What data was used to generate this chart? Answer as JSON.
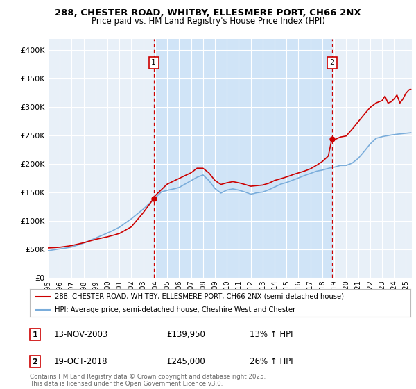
{
  "title_line1": "288, CHESTER ROAD, WHITBY, ELLESMERE PORT, CH66 2NX",
  "title_line2": "Price paid vs. HM Land Registry's House Price Index (HPI)",
  "fig_bg_color": "#ffffff",
  "plot_bg_color": "#e8f0f8",
  "plot_bg_highlight": "#d0e4f7",
  "ylim": [
    0,
    420000
  ],
  "yticks": [
    0,
    50000,
    100000,
    150000,
    200000,
    250000,
    300000,
    350000,
    400000
  ],
  "annotation1": {
    "label": "1",
    "date_x": 2003.87,
    "price": 139950,
    "date_str": "13-NOV-2003",
    "pct": "13%"
  },
  "annotation2": {
    "label": "2",
    "date_x": 2018.8,
    "price": 245000,
    "date_str": "19-OCT-2018",
    "pct": "26%"
  },
  "legend_line1": "288, CHESTER ROAD, WHITBY, ELLESMERE PORT, CH66 2NX (semi-detached house)",
  "legend_line2": "HPI: Average price, semi-detached house, Cheshire West and Chester",
  "footer": "Contains HM Land Registry data © Crown copyright and database right 2025.\nThis data is licensed under the Open Government Licence v3.0.",
  "sale_color": "#cc0000",
  "hpi_color": "#7aaddb",
  "vline_color": "#cc0000",
  "xmin": 1995,
  "xmax": 2025.5
}
